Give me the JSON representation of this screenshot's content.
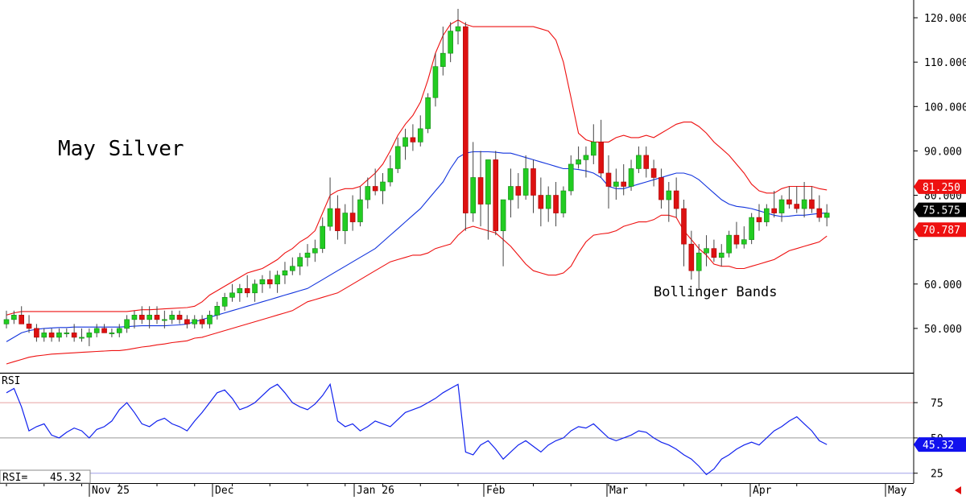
{
  "chart_data": {
    "type": "candlestick",
    "title": "May Silver",
    "annotation": "Bollinger Bands",
    "price_axis": {
      "ylim": [
        40,
        124
      ],
      "tick_values": [
        50,
        60,
        70,
        80,
        90,
        100,
        110,
        120
      ],
      "tick_labels": [
        "50.000",
        "60.000",
        "",
        "80.000",
        "90.000",
        "100.000",
        "110.000",
        "120.000"
      ]
    },
    "rsi_axis": {
      "ylim": [
        18,
        95
      ],
      "tick_values": [
        25,
        50,
        75
      ],
      "tick_labels": [
        "25",
        "50",
        "75"
      ],
      "overbought": 75,
      "oversold": 25
    },
    "x_labels": [
      "Nov 25",
      "Dec",
      "Jan 26",
      "Feb",
      "Mar",
      "Apr",
      "May"
    ],
    "value_boxes": {
      "upper_band": "81.250",
      "last_price": "75.575",
      "lower_band": "70.787",
      "rsi": "45.32"
    },
    "rsi_readout": {
      "label": "RSI=",
      "value": "45.32"
    },
    "colors": {
      "up_candle": "#22cc22",
      "down_candle": "#dd1111",
      "bollinger": "#ee1111",
      "middle_band": "#1133dd",
      "rsi_line": "#1122ee",
      "upper_box": "#ee1111",
      "price_box": "#000000",
      "lower_box": "#ee1111",
      "rsi_box": "#1111ee"
    },
    "candles": [
      [
        51,
        54,
        50,
        52
      ],
      [
        52,
        54,
        51,
        53
      ],
      [
        53,
        55,
        51,
        51
      ],
      [
        51,
        53,
        49,
        50
      ],
      [
        50,
        51,
        47,
        48
      ],
      [
        48,
        50,
        47,
        49
      ],
      [
        49,
        50,
        47,
        48
      ],
      [
        48,
        50,
        47,
        49
      ],
      [
        49,
        50,
        48,
        49
      ],
      [
        49,
        51,
        47,
        48
      ],
      [
        48,
        50,
        47,
        48
      ],
      [
        48,
        50,
        46,
        49
      ],
      [
        49,
        51,
        48,
        50
      ],
      [
        50,
        51,
        49,
        49
      ],
      [
        49,
        50,
        48,
        49
      ],
      [
        49,
        51,
        48,
        50
      ],
      [
        50,
        53,
        49,
        52
      ],
      [
        52,
        54,
        50,
        53
      ],
      [
        53,
        55,
        51,
        52
      ],
      [
        52,
        55,
        50,
        53
      ],
      [
        53,
        55,
        51,
        52
      ],
      [
        52,
        54,
        50,
        52
      ],
      [
        52,
        54,
        51,
        53
      ],
      [
        53,
        54,
        51,
        52
      ],
      [
        52,
        53,
        50,
        51
      ],
      [
        51,
        53,
        50,
        52
      ],
      [
        52,
        53,
        50,
        51
      ],
      [
        51,
        54,
        50,
        53
      ],
      [
        53,
        56,
        52,
        55
      ],
      [
        55,
        58,
        54,
        57
      ],
      [
        57,
        60,
        56,
        58
      ],
      [
        58,
        60,
        56,
        59
      ],
      [
        59,
        62,
        57,
        58
      ],
      [
        58,
        61,
        56,
        60
      ],
      [
        60,
        62,
        58,
        61
      ],
      [
        61,
        63,
        59,
        60
      ],
      [
        60,
        63,
        58,
        62
      ],
      [
        62,
        65,
        60,
        63
      ],
      [
        63,
        66,
        62,
        64
      ],
      [
        64,
        67,
        62,
        66
      ],
      [
        66,
        69,
        64,
        67
      ],
      [
        67,
        70,
        65,
        68
      ],
      [
        68,
        75,
        67,
        73
      ],
      [
        73,
        84,
        72,
        77
      ],
      [
        77,
        80,
        70,
        72
      ],
      [
        72,
        78,
        69,
        76
      ],
      [
        76,
        80,
        72,
        74
      ],
      [
        74,
        82,
        73,
        79
      ],
      [
        79,
        84,
        77,
        82
      ],
      [
        82,
        86,
        80,
        81
      ],
      [
        81,
        85,
        78,
        83
      ],
      [
        83,
        89,
        82,
        86
      ],
      [
        86,
        93,
        85,
        91
      ],
      [
        91,
        95,
        88,
        93
      ],
      [
        93,
        96,
        90,
        92
      ],
      [
        92,
        98,
        91,
        95
      ],
      [
        95,
        103,
        94,
        102
      ],
      [
        102,
        112,
        100,
        109
      ],
      [
        109,
        118,
        107,
        112
      ],
      [
        112,
        119,
        110,
        117
      ],
      [
        117,
        122,
        114,
        118
      ],
      [
        118,
        119,
        72,
        76
      ],
      [
        76,
        92,
        74,
        84
      ],
      [
        84,
        90,
        73,
        78
      ],
      [
        78,
        88,
        70,
        88
      ],
      [
        88,
        90,
        71,
        72
      ],
      [
        72,
        79,
        64,
        79
      ],
      [
        79,
        86,
        75,
        82
      ],
      [
        82,
        85,
        77,
        80
      ],
      [
        80,
        89,
        79,
        86
      ],
      [
        86,
        88,
        76,
        80
      ],
      [
        80,
        84,
        73,
        77
      ],
      [
        77,
        82,
        74,
        80
      ],
      [
        80,
        83,
        73,
        76
      ],
      [
        76,
        82,
        75,
        81
      ],
      [
        81,
        89,
        80,
        87
      ],
      [
        87,
        91,
        86,
        88
      ],
      [
        88,
        91,
        84,
        89
      ],
      [
        89,
        96,
        87,
        92
      ],
      [
        92,
        97,
        84,
        85
      ],
      [
        85,
        89,
        77,
        82
      ],
      [
        82,
        86,
        79,
        83
      ],
      [
        83,
        87,
        80,
        82
      ],
      [
        82,
        88,
        81,
        86
      ],
      [
        86,
        91,
        85,
        89
      ],
      [
        89,
        91,
        84,
        86
      ],
      [
        86,
        88,
        82,
        84
      ],
      [
        84,
        86,
        77,
        79
      ],
      [
        79,
        83,
        74,
        81
      ],
      [
        81,
        84,
        75,
        77
      ],
      [
        77,
        79,
        64,
        69
      ],
      [
        69,
        72,
        61,
        63
      ],
      [
        63,
        69,
        59,
        67
      ],
      [
        67,
        71,
        64,
        68
      ],
      [
        68,
        70,
        65,
        66
      ],
      [
        66,
        69,
        64,
        67
      ],
      [
        67,
        72,
        66,
        71
      ],
      [
        71,
        74,
        68,
        69
      ],
      [
        69,
        73,
        68,
        70
      ],
      [
        70,
        76,
        69,
        75
      ],
      [
        75,
        78,
        72,
        74
      ],
      [
        74,
        78,
        73,
        77
      ],
      [
        77,
        81,
        75,
        76
      ],
      [
        76,
        80,
        74,
        79
      ],
      [
        79,
        82,
        77,
        78
      ],
      [
        78,
        82,
        76,
        77
      ],
      [
        77,
        83,
        75,
        79
      ],
      [
        79,
        82,
        76,
        77
      ],
      [
        77,
        80,
        74,
        75
      ],
      [
        75,
        78,
        73,
        76
      ]
    ],
    "upper_band": [
      53,
      53.5,
      53.8,
      53.8,
      53.8,
      53.8,
      53.8,
      53.8,
      53.8,
      53.8,
      53.8,
      53.8,
      53.8,
      53.8,
      53.8,
      53.8,
      53.8,
      54,
      54.2,
      54.2,
      54.3,
      54.4,
      54.5,
      54.6,
      54.7,
      55,
      56,
      57.5,
      58.5,
      59.5,
      60.5,
      61.5,
      62.5,
      63,
      63.5,
      64.5,
      65.5,
      67,
      68,
      69.5,
      70.5,
      72,
      76,
      80,
      81,
      81.5,
      81.5,
      82,
      83.5,
      85,
      87,
      90,
      93.5,
      96,
      98,
      101,
      106,
      112,
      116,
      118.5,
      119.5,
      118.5,
      118,
      118,
      118,
      118,
      118,
      118,
      118,
      118,
      118,
      117.5,
      117,
      115,
      110,
      102,
      94,
      92.5,
      92,
      92,
      92,
      93,
      93.5,
      93,
      93,
      93.5,
      93,
      94,
      95,
      96,
      96.5,
      96.5,
      95.5,
      94,
      92,
      90.5,
      89,
      87,
      85,
      82.5,
      81,
      80.5,
      80.5,
      81.5,
      82,
      82,
      82,
      82,
      81.5,
      81.2
    ],
    "middle_band": [
      47,
      48,
      49,
      49.5,
      49.8,
      50,
      50.1,
      50.2,
      50.2,
      50.3,
      50.3,
      50.3,
      50.3,
      50.3,
      50.3,
      50.3,
      50.4,
      50.5,
      50.6,
      50.6,
      50.6,
      50.6,
      50.7,
      50.8,
      51,
      51.5,
      52,
      52.5,
      53,
      53.5,
      54,
      54.5,
      55,
      55.5,
      56,
      56.5,
      57,
      57.5,
      58,
      58.5,
      59,
      60,
      61,
      62,
      63,
      64,
      65,
      66,
      67,
      68,
      69.5,
      71,
      72.5,
      74,
      75.5,
      77,
      79,
      81,
      83,
      86,
      88.5,
      89.5,
      89.8,
      89.8,
      89.8,
      89.7,
      89.5,
      89.5,
      89,
      88.5,
      88,
      87.5,
      87,
      86.5,
      86,
      86,
      85.8,
      85.5,
      85,
      84,
      82,
      81.5,
      81.5,
      82,
      82.5,
      83,
      83.5,
      84,
      84.5,
      85,
      85,
      84.5,
      83.5,
      82,
      80.5,
      79,
      78,
      77.5,
      77.3,
      77,
      76.5,
      76,
      75.5,
      75.2,
      75.3,
      75.5,
      75.5,
      75.7,
      75.9,
      76
    ],
    "lower_band": [
      42,
      42.5,
      43,
      43.5,
      43.8,
      44,
      44.2,
      44.3,
      44.4,
      44.5,
      44.6,
      44.7,
      44.8,
      44.9,
      45,
      45,
      45.2,
      45.5,
      45.8,
      46,
      46.3,
      46.5,
      46.8,
      47,
      47.2,
      47.8,
      48,
      48.5,
      49,
      49.5,
      50,
      50.5,
      51,
      51.5,
      52,
      52.5,
      53,
      53.5,
      54,
      55,
      56,
      56.5,
      57,
      57.5,
      58,
      59,
      60,
      61,
      62,
      63,
      64,
      65,
      65.5,
      66,
      66.5,
      66.5,
      67,
      68,
      68.5,
      69,
      71,
      72.5,
      73,
      72.5,
      72,
      71.5,
      70,
      68.5,
      66.5,
      64.5,
      63,
      62.5,
      62,
      62,
      62.5,
      64,
      67,
      69.5,
      71,
      71.3,
      71.5,
      72,
      73,
      73.5,
      74,
      74,
      74.5,
      75.5,
      75.5,
      75,
      72,
      70,
      68,
      66.5,
      64.5,
      64,
      64,
      63.5,
      63.5,
      64,
      64.5,
      65,
      65.5,
      66.5,
      67.5,
      68,
      68.5,
      69,
      69.5,
      70.8
    ],
    "rsi": [
      82,
      85,
      72,
      55,
      58,
      60,
      52,
      50,
      54,
      57,
      55,
      50,
      56,
      58,
      62,
      70,
      75,
      68,
      60,
      58,
      62,
      64,
      60,
      58,
      55,
      62,
      68,
      75,
      82,
      84,
      78,
      70,
      72,
      75,
      80,
      85,
      88,
      82,
      75,
      72,
      70,
      74,
      80,
      88,
      62,
      58,
      60,
      55,
      58,
      62,
      60,
      58,
      63,
      68,
      70,
      72,
      75,
      78,
      82,
      85,
      88,
      40,
      38,
      45,
      48,
      42,
      35,
      40,
      45,
      48,
      44,
      40,
      45,
      48,
      50,
      55,
      58,
      57,
      60,
      55,
      50,
      48,
      50,
      52,
      55,
      54,
      50,
      47,
      45,
      42,
      38,
      35,
      30,
      24,
      28,
      35,
      38,
      42,
      45,
      47,
      45,
      50,
      55,
      58,
      62,
      65,
      60,
      55,
      48,
      45.3
    ]
  }
}
